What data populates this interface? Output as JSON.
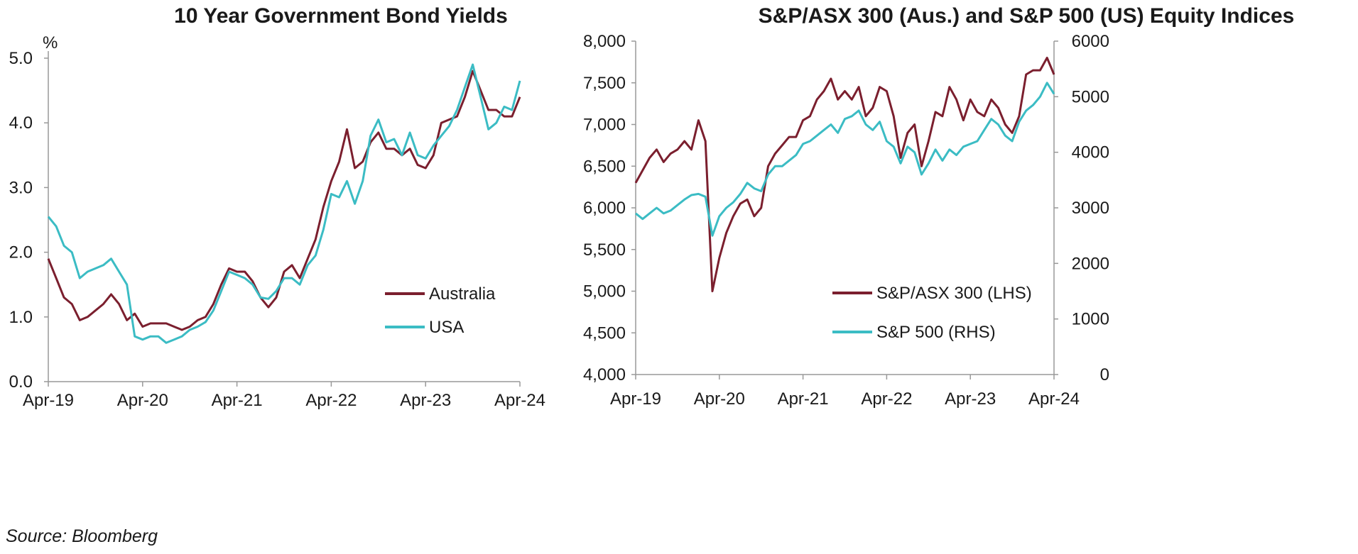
{
  "charts": [
    {
      "title": "10 Year Government Bond Yields",
      "unit_label": "%"
    },
    {
      "title": "S&P/ASX 300 (Aus.) and S&P 500 (US) Equity Indices"
    }
  ],
  "source": "Source: Bloomberg",
  "chart_data": [
    {
      "type": "line",
      "title": "10 Year Government Bond Yields",
      "ylabel": "%",
      "ylim": [
        0,
        5
      ],
      "y_ticks": [
        0,
        1,
        2,
        3,
        4,
        5
      ],
      "y_tick_labels": [
        "0.0",
        "1.0",
        "2.0",
        "3.0",
        "4.0",
        "5.0"
      ],
      "x_tick_labels": [
        "Apr-19",
        "Apr-20",
        "Apr-21",
        "Apr-22",
        "Apr-23",
        "Apr-24"
      ],
      "legend_position": "right",
      "x": [
        "2019-04",
        "2019-05",
        "2019-06",
        "2019-07",
        "2019-08",
        "2019-09",
        "2019-10",
        "2019-11",
        "2019-12",
        "2020-01",
        "2020-02",
        "2020-03",
        "2020-04",
        "2020-05",
        "2020-06",
        "2020-07",
        "2020-08",
        "2020-09",
        "2020-10",
        "2020-11",
        "2020-12",
        "2021-01",
        "2021-02",
        "2021-03",
        "2021-04",
        "2021-05",
        "2021-06",
        "2021-07",
        "2021-08",
        "2021-09",
        "2021-10",
        "2021-11",
        "2021-12",
        "2022-01",
        "2022-02",
        "2022-03",
        "2022-04",
        "2022-05",
        "2022-06",
        "2022-07",
        "2022-08",
        "2022-09",
        "2022-10",
        "2022-11",
        "2022-12",
        "2023-01",
        "2023-02",
        "2023-03",
        "2023-04",
        "2023-05",
        "2023-06",
        "2023-07",
        "2023-08",
        "2023-09",
        "2023-10",
        "2023-11",
        "2023-12",
        "2024-01",
        "2024-02",
        "2024-03",
        "2024-04"
      ],
      "series": [
        {
          "name": "Australia",
          "color": "#7b1f2e",
          "values": [
            1.9,
            1.6,
            1.3,
            1.2,
            0.95,
            1.0,
            1.1,
            1.2,
            1.35,
            1.2,
            0.95,
            1.05,
            0.85,
            0.9,
            0.9,
            0.9,
            0.85,
            0.8,
            0.85,
            0.95,
            1.0,
            1.2,
            1.5,
            1.75,
            1.7,
            1.7,
            1.55,
            1.3,
            1.15,
            1.3,
            1.7,
            1.8,
            1.6,
            1.9,
            2.2,
            2.7,
            3.1,
            3.4,
            3.9,
            3.3,
            3.4,
            3.7,
            3.85,
            3.6,
            3.6,
            3.5,
            3.6,
            3.35,
            3.3,
            3.5,
            4.0,
            4.05,
            4.1,
            4.4,
            4.8,
            4.5,
            4.2,
            4.2,
            4.1,
            4.1,
            4.4
          ]
        },
        {
          "name": "USA",
          "color": "#3bbcc4",
          "values": [
            2.55,
            2.4,
            2.1,
            2.0,
            1.6,
            1.7,
            1.75,
            1.8,
            1.9,
            1.7,
            1.5,
            0.7,
            0.65,
            0.7,
            0.7,
            0.6,
            0.65,
            0.7,
            0.8,
            0.85,
            0.92,
            1.1,
            1.4,
            1.7,
            1.65,
            1.6,
            1.5,
            1.3,
            1.28,
            1.4,
            1.6,
            1.6,
            1.5,
            1.8,
            1.95,
            2.35,
            2.9,
            2.85,
            3.1,
            2.75,
            3.1,
            3.8,
            4.05,
            3.7,
            3.75,
            3.5,
            3.85,
            3.5,
            3.45,
            3.65,
            3.8,
            3.95,
            4.2,
            4.55,
            4.9,
            4.4,
            3.9,
            4.0,
            4.25,
            4.2,
            4.65
          ]
        }
      ]
    },
    {
      "type": "line",
      "title": "S&P/ASX 300 (Aus.) and S&P 500 (US) Equity Indices",
      "ylim_left": [
        4000,
        8000
      ],
      "y_ticks_left": [
        4000,
        4500,
        5000,
        5500,
        6000,
        6500,
        7000,
        7500,
        8000
      ],
      "y_tick_labels_left": [
        "4,000",
        "4,500",
        "5,000",
        "5,500",
        "6,000",
        "6,500",
        "7,000",
        "7,500",
        "8,000"
      ],
      "ylim_right": [
        0,
        6000
      ],
      "y_ticks_right": [
        0,
        1000,
        2000,
        3000,
        4000,
        5000,
        6000
      ],
      "y_tick_labels_right": [
        "0",
        "1000",
        "2000",
        "3000",
        "4000",
        "5000",
        "6000"
      ],
      "x_tick_labels": [
        "Apr-19",
        "Apr-20",
        "Apr-21",
        "Apr-22",
        "Apr-23",
        "Apr-24"
      ],
      "legend_position": "bottom-right",
      "x": [
        "2019-04",
        "2019-05",
        "2019-06",
        "2019-07",
        "2019-08",
        "2019-09",
        "2019-10",
        "2019-11",
        "2019-12",
        "2020-01",
        "2020-02",
        "2020-03",
        "2020-04",
        "2020-05",
        "2020-06",
        "2020-07",
        "2020-08",
        "2020-09",
        "2020-10",
        "2020-11",
        "2020-12",
        "2021-01",
        "2021-02",
        "2021-03",
        "2021-04",
        "2021-05",
        "2021-06",
        "2021-07",
        "2021-08",
        "2021-09",
        "2021-10",
        "2021-11",
        "2021-12",
        "2022-01",
        "2022-02",
        "2022-03",
        "2022-04",
        "2022-05",
        "2022-06",
        "2022-07",
        "2022-08",
        "2022-09",
        "2022-10",
        "2022-11",
        "2022-12",
        "2023-01",
        "2023-02",
        "2023-03",
        "2023-04",
        "2023-05",
        "2023-06",
        "2023-07",
        "2023-08",
        "2023-09",
        "2023-10",
        "2023-11",
        "2023-12",
        "2024-01",
        "2024-02",
        "2024-03",
        "2024-04"
      ],
      "series": [
        {
          "name": "S&P/ASX 300 (LHS)",
          "axis": "left",
          "color": "#7b1f2e",
          "values": [
            6300,
            6450,
            6600,
            6700,
            6550,
            6650,
            6700,
            6800,
            6700,
            7050,
            6800,
            5000,
            5400,
            5700,
            5900,
            6050,
            6100,
            5900,
            6000,
            6500,
            6650,
            6750,
            6850,
            6850,
            7050,
            7100,
            7300,
            7400,
            7550,
            7300,
            7400,
            7300,
            7450,
            7100,
            7200,
            7450,
            7400,
            7100,
            6600,
            6900,
            7000,
            6500,
            6800,
            7150,
            7100,
            7450,
            7300,
            7050,
            7300,
            7150,
            7100,
            7300,
            7200,
            7000,
            6900,
            7100,
            7600,
            7650,
            7650,
            7800,
            7600
          ]
        },
        {
          "name": "S&P 500 (RHS)",
          "axis": "right",
          "color": "#3bbcc4",
          "values": [
            2900,
            2800,
            2900,
            3000,
            2900,
            2950,
            3050,
            3150,
            3230,
            3250,
            3200,
            2500,
            2850,
            3000,
            3100,
            3250,
            3450,
            3350,
            3300,
            3600,
            3750,
            3750,
            3850,
            3950,
            4150,
            4200,
            4300,
            4400,
            4500,
            4350,
            4600,
            4650,
            4750,
            4500,
            4400,
            4550,
            4200,
            4100,
            3800,
            4100,
            4000,
            3600,
            3800,
            4050,
            3850,
            4050,
            3950,
            4100,
            4150,
            4200,
            4400,
            4600,
            4500,
            4300,
            4200,
            4550,
            4750,
            4850,
            5000,
            5250,
            5050
          ]
        }
      ]
    }
  ]
}
